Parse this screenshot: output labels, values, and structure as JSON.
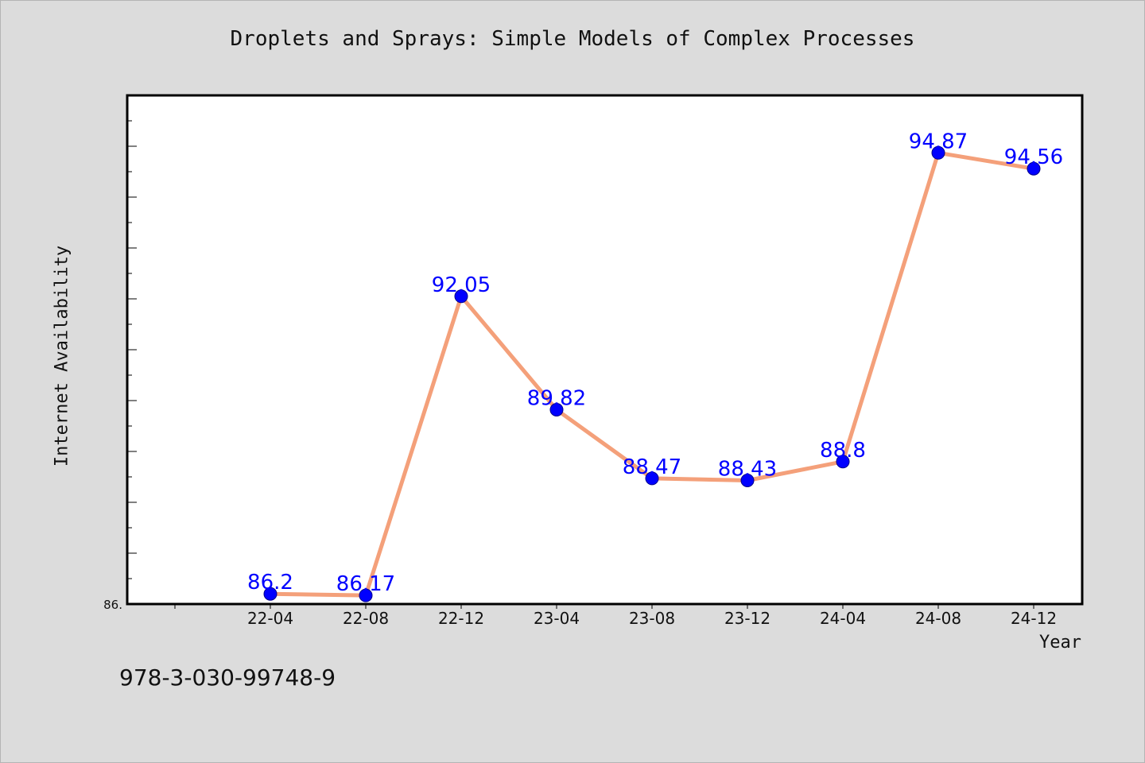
{
  "chart_data": {
    "type": "line",
    "title": "Droplets and Sprays: Simple Models of Complex Processes",
    "xlabel": "Year",
    "ylabel": "Internet Availability",
    "categories": [
      "22-04",
      "22-08",
      "22-12",
      "23-04",
      "23-08",
      "23-12",
      "24-04",
      "24-08",
      "24-12"
    ],
    "series": [
      {
        "values": [
          86.2,
          86.17,
          92.05,
          89.82,
          88.47,
          88.43,
          88.8,
          94.87,
          94.56
        ],
        "labels": [
          "86.2",
          "86.17",
          "92.05",
          "89.82",
          "88.47",
          "88.43",
          "88.8",
          "94.87",
          "94.56"
        ]
      }
    ],
    "ylim": [
      86.0,
      96.0
    ],
    "y_tick_label": "86.",
    "grid": false,
    "colors": {
      "line": "#f4a07a",
      "marker": "#0000ff",
      "label": "#0000ff"
    }
  },
  "footer": {
    "isbn": "978-3-030-99748-9"
  }
}
